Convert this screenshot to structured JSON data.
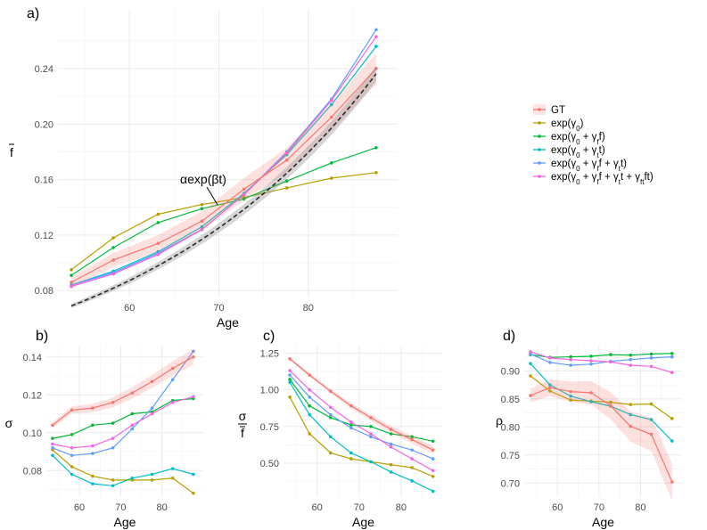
{
  "colors": {
    "GT": "#F8766D",
    "g0": "#B79F00",
    "g0f": "#00BA38",
    "g0t": "#00BFC4",
    "g0ft": "#619CFF",
    "g0ftft": "#F564E3",
    "fit": "#222222"
  },
  "legend": {
    "items": [
      {
        "key": "GT",
        "label": "GT"
      },
      {
        "key": "g0",
        "label": "exp(γ₀)"
      },
      {
        "key": "g0f",
        "label": "exp(γ₀ + γ_f f)"
      },
      {
        "key": "g0t",
        "label": "exp(γ₀ + γ_t t)"
      },
      {
        "key": "g0ft",
        "label": "exp(γ₀ + γ_f f + γ_t t)"
      },
      {
        "key": "g0ftft",
        "label": "exp(γ₀ + γ_f f + γ_t t + γ_ft f t)"
      }
    ]
  },
  "chart_data": [
    {
      "panel": "a)",
      "type": "line",
      "xlabel": "Age",
      "ylabel": "f̄",
      "xlim": [
        52,
        90
      ],
      "ylim": [
        0.075,
        0.283
      ],
      "xticks": [
        60,
        70,
        80
      ],
      "yticks": [
        0.08,
        0.12,
        0.16,
        0.2,
        0.24
      ],
      "ytick_labels": [
        "0.08",
        "0.12",
        "0.16",
        "0.20",
        "0.24"
      ],
      "grid": true,
      "annotation": "αexp(βt)",
      "x": [
        53.5,
        58.2,
        63.2,
        68.1,
        72.8,
        77.6,
        82.6,
        87.6
      ],
      "series": [
        {
          "key": "GT",
          "values": [
            0.086,
            0.102,
            0.114,
            0.13,
            0.153,
            0.174,
            0.205,
            0.24
          ],
          "band": 0.004
        },
        {
          "key": "g0",
          "values": [
            0.095,
            0.118,
            0.135,
            0.142,
            0.147,
            0.154,
            0.161,
            0.165
          ]
        },
        {
          "key": "g0f",
          "values": [
            0.091,
            0.111,
            0.129,
            0.139,
            0.146,
            0.159,
            0.172,
            0.183
          ]
        },
        {
          "key": "g0t",
          "values": [
            0.084,
            0.094,
            0.108,
            0.126,
            0.15,
            0.178,
            0.214,
            0.256
          ]
        },
        {
          "key": "g0ft",
          "values": [
            0.084,
            0.093,
            0.107,
            0.124,
            0.149,
            0.18,
            0.218,
            0.268
          ]
        },
        {
          "key": "g0ftft",
          "values": [
            0.083,
            0.092,
            0.106,
            0.124,
            0.149,
            0.179,
            0.217,
            0.263
          ]
        }
      ],
      "fit": {
        "alpha": 0.01,
        "beta": 0.0361
      }
    },
    {
      "panel": "b)",
      "type": "line",
      "xlabel": "Age",
      "ylabel": "σ",
      "xlim": [
        52,
        90
      ],
      "ylim": [
        0.066,
        0.146
      ],
      "xticks": [
        60,
        70,
        80
      ],
      "yticks": [
        0.08,
        0.1,
        0.12,
        0.14
      ],
      "ytick_labels": [
        "0.08",
        "0.10",
        "0.12",
        "0.14"
      ],
      "grid": true,
      "x": [
        53.5,
        58.2,
        63.2,
        68.1,
        72.8,
        77.6,
        82.6,
        87.6
      ],
      "series": [
        {
          "key": "GT",
          "values": [
            0.104,
            0.112,
            0.113,
            0.116,
            0.121,
            0.127,
            0.134,
            0.14
          ],
          "band": 0.0015
        },
        {
          "key": "g0",
          "values": [
            0.091,
            0.082,
            0.077,
            0.075,
            0.075,
            0.075,
            0.076,
            0.068
          ]
        },
        {
          "key": "g0f",
          "values": [
            0.097,
            0.099,
            0.104,
            0.105,
            0.11,
            0.111,
            0.117,
            0.118
          ]
        },
        {
          "key": "g0t",
          "values": [
            0.088,
            0.078,
            0.073,
            0.072,
            0.076,
            0.078,
            0.081,
            0.078
          ]
        },
        {
          "key": "g0ft",
          "values": [
            0.092,
            0.088,
            0.089,
            0.092,
            0.102,
            0.113,
            0.128,
            0.143
          ]
        },
        {
          "key": "g0ftft",
          "values": [
            0.094,
            0.092,
            0.093,
            0.097,
            0.104,
            0.11,
            0.116,
            0.119
          ]
        }
      ]
    },
    {
      "panel": "c)",
      "type": "line",
      "xlabel": "Age",
      "ylabel": "σ / f̄",
      "xlim": [
        52,
        90
      ],
      "ylim": [
        0.27,
        1.3
      ],
      "xticks": [
        60,
        70,
        80
      ],
      "yticks": [
        0.5,
        0.75,
        1.0,
        1.25
      ],
      "ytick_labels": [
        "0.50",
        "0.75",
        "1.00",
        "1.25"
      ],
      "grid": true,
      "x": [
        53.5,
        58.2,
        63.2,
        68.1,
        72.8,
        77.6,
        82.6,
        87.6
      ],
      "series": [
        {
          "key": "GT",
          "values": [
            1.21,
            1.1,
            0.99,
            0.89,
            0.81,
            0.73,
            0.66,
            0.59
          ],
          "band": 0.01
        },
        {
          "key": "g0",
          "values": [
            0.95,
            0.7,
            0.57,
            0.53,
            0.51,
            0.49,
            0.47,
            0.41
          ]
        },
        {
          "key": "g0f",
          "values": [
            1.07,
            0.89,
            0.81,
            0.76,
            0.75,
            0.7,
            0.68,
            0.65
          ]
        },
        {
          "key": "g0t",
          "values": [
            1.05,
            0.83,
            0.68,
            0.57,
            0.51,
            0.44,
            0.38,
            0.31
          ]
        },
        {
          "key": "g0ft",
          "values": [
            1.1,
            0.95,
            0.83,
            0.74,
            0.68,
            0.63,
            0.59,
            0.53
          ]
        },
        {
          "key": "g0ftft",
          "values": [
            1.13,
            1.0,
            0.88,
            0.78,
            0.7,
            0.61,
            0.53,
            0.45
          ]
        }
      ]
    },
    {
      "panel": "d)",
      "type": "line",
      "xlabel": "Age",
      "ylabel": "ρ",
      "xlim": [
        52,
        90
      ],
      "ylim": [
        0.675,
        0.945
      ],
      "xticks": [
        60,
        70,
        80
      ],
      "yticks": [
        0.7,
        0.75,
        0.8,
        0.85,
        0.9
      ],
      "ytick_labels": [
        "0.70",
        "0.75",
        "0.80",
        "0.85",
        "0.90"
      ],
      "grid": true,
      "x": [
        53.5,
        58.2,
        63.2,
        68.1,
        72.8,
        77.6,
        82.6,
        87.6
      ],
      "series": [
        {
          "key": "GT",
          "values": [
            0.856,
            0.87,
            0.863,
            0.861,
            0.838,
            0.801,
            0.787,
            0.702
          ],
          "band": 0.012
        },
        {
          "key": "g0",
          "values": [
            0.891,
            0.864,
            0.848,
            0.846,
            0.844,
            0.84,
            0.841,
            0.815
          ]
        },
        {
          "key": "g0f",
          "values": [
            0.929,
            0.924,
            0.925,
            0.926,
            0.929,
            0.928,
            0.93,
            0.931
          ]
        },
        {
          "key": "g0t",
          "values": [
            0.913,
            0.875,
            0.855,
            0.845,
            0.837,
            0.822,
            0.813,
            0.775
          ]
        },
        {
          "key": "g0ft",
          "values": [
            0.93,
            0.915,
            0.91,
            0.912,
            0.917,
            0.92,
            0.923,
            0.925
          ]
        },
        {
          "key": "g0ftft",
          "values": [
            0.934,
            0.923,
            0.92,
            0.918,
            0.916,
            0.91,
            0.908,
            0.897
          ]
        }
      ]
    }
  ]
}
